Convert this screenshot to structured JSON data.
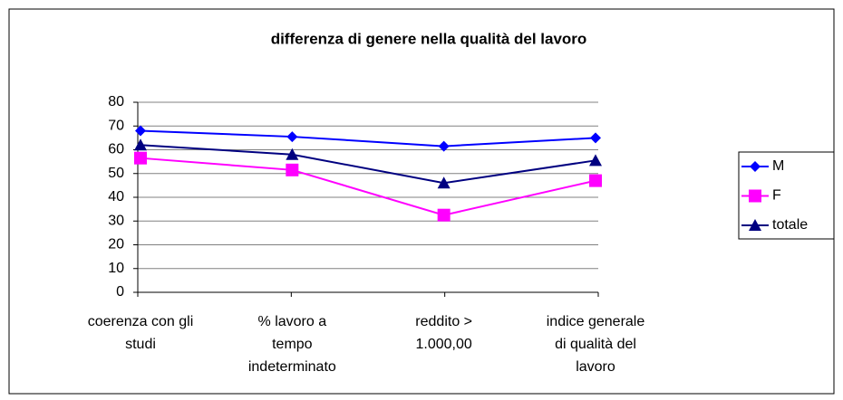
{
  "chart_data": {
    "type": "line",
    "title": "differenza di genere nella qualità del lavoro",
    "categories": [
      [
        "coerenza con gli",
        "studi"
      ],
      [
        "% lavoro a",
        "tempo",
        "indeterminato"
      ],
      [
        "reddito >",
        "1.000,00"
      ],
      [
        "indice generale",
        "di qualità del",
        "lavoro"
      ]
    ],
    "series": [
      {
        "name": "M",
        "color": "#0000ff",
        "marker": "diamond",
        "values": [
          68,
          65.5,
          61.5,
          65
        ]
      },
      {
        "name": "F",
        "color": "#ff00ff",
        "marker": "square",
        "values": [
          56.5,
          51.5,
          32.5,
          47
        ]
      },
      {
        "name": "totale",
        "color": "#000080",
        "marker": "triangle",
        "values": [
          62,
          58,
          46,
          55.5
        ]
      }
    ],
    "ylim": [
      0,
      80
    ],
    "yticks": [
      0,
      10,
      20,
      30,
      40,
      50,
      60,
      70,
      80
    ],
    "grid": true,
    "legend": "right"
  }
}
